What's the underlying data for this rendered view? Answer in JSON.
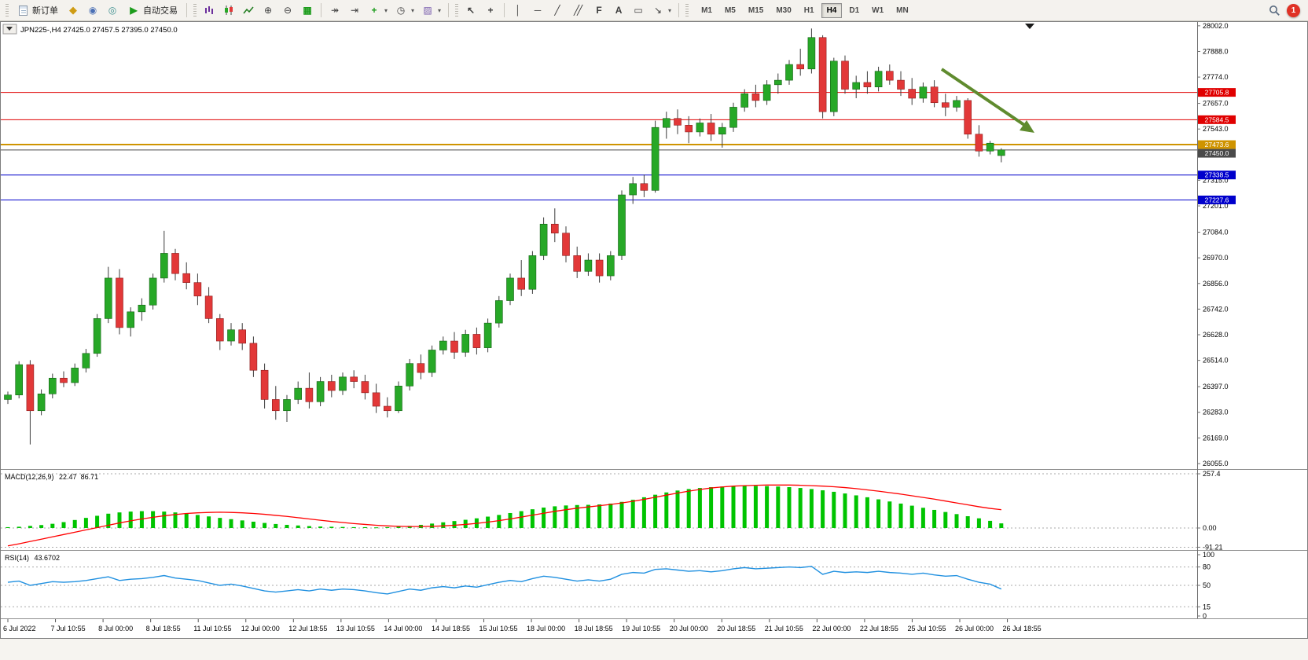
{
  "toolbar": {
    "new_order_label": "新订单",
    "autotrade_label": "自动交易",
    "timeframes": [
      "M1",
      "M5",
      "M15",
      "M30",
      "H1",
      "H4",
      "D1",
      "W1",
      "MN"
    ],
    "active_timeframe": "H4",
    "badge_count": "1"
  },
  "icons": {
    "metaeditor": "◆",
    "community": "◉",
    "market": "◎",
    "autotrade_play": "▶",
    "zoom_in": "⊕",
    "zoom_out": "⊖",
    "tile_windows": "▦",
    "auto_scroll": "↠",
    "chart_shift": "⇥",
    "indicators_add": "+",
    "periods_clock": "◷",
    "templates": "▨",
    "cursor": "↖",
    "crosshair": "+",
    "vline": "│",
    "hline": "─",
    "trendline": "╱",
    "channel": "╱╱",
    "fibonacci": "F",
    "text_tool": "A",
    "label_tool": "▭",
    "arrows_tool": "↘",
    "caret": "▾"
  },
  "chart_data": {
    "type": "candlestick",
    "symbol_label": "JPN225-,H4",
    "ohlc_display": "27425.0 27457.5 27395.0 27450.0",
    "colors": {
      "up": "#27a827",
      "down": "#e23838",
      "wick": "#3c3c3c",
      "macd_bar": "#00c400",
      "macd_signal": "#ff0000",
      "rsi_line": "#2090e0"
    },
    "candles": [
      [
        26340,
        26375,
        26320,
        26360
      ],
      [
        26360,
        26510,
        26345,
        26495
      ],
      [
        26495,
        26515,
        26140,
        26290
      ],
      [
        26290,
        26385,
        26270,
        26365
      ],
      [
        26365,
        26455,
        26345,
        26435
      ],
      [
        26435,
        26465,
        26395,
        26415
      ],
      [
        26415,
        26500,
        26400,
        26480
      ],
      [
        26480,
        26565,
        26460,
        26545
      ],
      [
        26545,
        26720,
        26530,
        26700
      ],
      [
        26700,
        26930,
        26680,
        26880
      ],
      [
        26880,
        26920,
        26630,
        26660
      ],
      [
        26660,
        26750,
        26620,
        26730
      ],
      [
        26730,
        26790,
        26690,
        26760
      ],
      [
        26760,
        26900,
        26740,
        26880
      ],
      [
        26880,
        27090,
        26860,
        26990
      ],
      [
        26990,
        27010,
        26870,
        26900
      ],
      [
        26900,
        26950,
        26830,
        26860
      ],
      [
        26860,
        26900,
        26760,
        26800
      ],
      [
        26800,
        26840,
        26680,
        26700
      ],
      [
        26700,
        26720,
        26560,
        26600
      ],
      [
        26600,
        26680,
        26580,
        26650
      ],
      [
        26650,
        26680,
        26560,
        26590
      ],
      [
        26590,
        26620,
        26440,
        26470
      ],
      [
        26470,
        26500,
        26300,
        26340
      ],
      [
        26340,
        26400,
        26250,
        26290
      ],
      [
        26290,
        26360,
        26240,
        26340
      ],
      [
        26340,
        26420,
        26320,
        26390
      ],
      [
        26390,
        26460,
        26300,
        26330
      ],
      [
        26330,
        26440,
        26310,
        26420
      ],
      [
        26420,
        26450,
        26350,
        26380
      ],
      [
        26380,
        26460,
        26360,
        26440
      ],
      [
        26440,
        26470,
        26390,
        26420
      ],
      [
        26420,
        26450,
        26340,
        26370
      ],
      [
        26370,
        26410,
        26280,
        26310
      ],
      [
        26310,
        26350,
        26260,
        26290
      ],
      [
        26290,
        26420,
        26280,
        26400
      ],
      [
        26400,
        26520,
        26380,
        26500
      ],
      [
        26500,
        26540,
        26430,
        26460
      ],
      [
        26460,
        26580,
        26440,
        26560
      ],
      [
        26560,
        26620,
        26540,
        26600
      ],
      [
        26600,
        26640,
        26520,
        26550
      ],
      [
        26550,
        26650,
        26530,
        26630
      ],
      [
        26630,
        26660,
        26540,
        26570
      ],
      [
        26570,
        26700,
        26550,
        26680
      ],
      [
        26680,
        26800,
        26660,
        26780
      ],
      [
        26780,
        26900,
        26760,
        26880
      ],
      [
        26880,
        26960,
        26800,
        26830
      ],
      [
        26830,
        27000,
        26810,
        26980
      ],
      [
        26980,
        27150,
        26960,
        27120
      ],
      [
        27120,
        27190,
        27040,
        27080
      ],
      [
        27080,
        27110,
        26950,
        26980
      ],
      [
        26980,
        27020,
        26880,
        26910
      ],
      [
        26910,
        26990,
        26890,
        26960
      ],
      [
        26960,
        26990,
        26860,
        26890
      ],
      [
        26890,
        27000,
        26870,
        26980
      ],
      [
        26980,
        27270,
        26960,
        27250
      ],
      [
        27250,
        27330,
        27210,
        27300
      ],
      [
        27300,
        27340,
        27240,
        27270
      ],
      [
        27270,
        27580,
        27260,
        27550
      ],
      [
        27550,
        27620,
        27500,
        27590
      ],
      [
        27590,
        27630,
        27520,
        27560
      ],
      [
        27560,
        27600,
        27480,
        27530
      ],
      [
        27530,
        27590,
        27510,
        27570
      ],
      [
        27570,
        27610,
        27490,
        27520
      ],
      [
        27520,
        27570,
        27460,
        27550
      ],
      [
        27550,
        27660,
        27530,
        27640
      ],
      [
        27640,
        27720,
        27620,
        27700
      ],
      [
        27700,
        27740,
        27640,
        27670
      ],
      [
        27670,
        27760,
        27650,
        27740
      ],
      [
        27740,
        27790,
        27700,
        27760
      ],
      [
        27760,
        27850,
        27740,
        27830
      ],
      [
        27830,
        27900,
        27780,
        27810
      ],
      [
        27810,
        27990,
        27790,
        27950
      ],
      [
        27950,
        27960,
        27590,
        27620
      ],
      [
        27620,
        27860,
        27600,
        27845
      ],
      [
        27845,
        27870,
        27700,
        27720
      ],
      [
        27720,
        27780,
        27680,
        27750
      ],
      [
        27750,
        27800,
        27700,
        27730
      ],
      [
        27730,
        27820,
        27710,
        27800
      ],
      [
        27800,
        27830,
        27740,
        27760
      ],
      [
        27760,
        27800,
        27690,
        27720
      ],
      [
        27720,
        27770,
        27650,
        27680
      ],
      [
        27680,
        27750,
        27660,
        27730
      ],
      [
        27730,
        27760,
        27640,
        27660
      ],
      [
        27660,
        27700,
        27600,
        27640
      ],
      [
        27640,
        27690,
        27620,
        27670
      ],
      [
        27670,
        27680,
        27500,
        27520
      ],
      [
        27520,
        27560,
        27420,
        27445
      ],
      [
        27445,
        27490,
        27430,
        27480
      ],
      [
        27425,
        27457.5,
        27395,
        27450
      ]
    ],
    "price_ticks": [
      {
        "label": "28002.0",
        "value": 28002
      },
      {
        "label": "27888.0",
        "value": 27888
      },
      {
        "label": "27774.0",
        "value": 27774
      },
      {
        "label": "27657.0",
        "value": 27657
      },
      {
        "label": "27543.0",
        "value": 27543
      },
      {
        "label": "27429.0",
        "value": 27429
      },
      {
        "label": "27315.0",
        "value": 27315
      },
      {
        "label": "27201.0",
        "value": 27201
      },
      {
        "label": "27084.0",
        "value": 27084
      },
      {
        "label": "26970.0",
        "value": 26970
      },
      {
        "label": "26856.0",
        "value": 26856
      },
      {
        "label": "26742.0",
        "value": 26742
      },
      {
        "label": "26628.0",
        "value": 26628
      },
      {
        "label": "26514.0",
        "value": 26514
      },
      {
        "label": "26397.0",
        "value": 26397
      },
      {
        "label": "26283.0",
        "value": 26283
      },
      {
        "label": "26169.0",
        "value": 26169
      },
      {
        "label": "26055.0",
        "value": 26055
      }
    ],
    "hlines": [
      {
        "value": 27705.8,
        "label": "27705.8",
        "color": "#e00000",
        "width": 1
      },
      {
        "value": 27584.5,
        "label": "27584.5",
        "color": "#e00000",
        "width": 1
      },
      {
        "value": 27473.6,
        "label": "27473.6",
        "color": "#cf9400",
        "width": 2
      },
      {
        "value": 27338.5,
        "label": "27338.5",
        "color": "#0000cc",
        "width": 1
      },
      {
        "value": 27227.6,
        "label": "27227.6",
        "color": "#0000cc",
        "width": 1
      }
    ],
    "current_price": {
      "value": 27450.0,
      "label": "27450.0",
      "color": "#4a4a4a"
    },
    "trend_arrow": {
      "color": "#5f8b2e"
    },
    "time_labels": [
      "6 Jul 2022",
      "7 Jul 10:55",
      "8 Jul 00:00",
      "8 Jul 18:55",
      "11 Jul 10:55",
      "12 Jul 00:00",
      "12 Jul 18:55",
      "13 Jul 10:55",
      "14 Jul 00:00",
      "14 Jul 18:55",
      "15 Jul 10:55",
      "18 Jul 00:00",
      "18 Jul 18:55",
      "19 Jul 10:55",
      "20 Jul 00:00",
      "20 Jul 18:55",
      "21 Jul 10:55",
      "22 Jul 00:00",
      "22 Jul 18:55",
      "25 Jul 10:55",
      "26 Jul 00:00",
      "26 Jul 18:55"
    ],
    "macd": {
      "name": "MACD(12,26,9)",
      "value_main": "22.47",
      "value_signal": "86.71",
      "ticks": [
        {
          "label": "257.4",
          "value": 257.4
        },
        {
          "label": "0.00",
          "value": 0
        },
        {
          "label": "-91.21",
          "value": -91.21
        }
      ],
      "bars": [
        4,
        6,
        10,
        14,
        20,
        28,
        38,
        48,
        58,
        68,
        74,
        78,
        80,
        80,
        78,
        74,
        68,
        62,
        55,
        48,
        42,
        36,
        30,
        24,
        19,
        15,
        12,
        9,
        7,
        6,
        5,
        4,
        4,
        3,
        4,
        6,
        10,
        15,
        21,
        27,
        33,
        39,
        46,
        54,
        62,
        71,
        80,
        89,
        97,
        103,
        107,
        109,
        110,
        112,
        116,
        124,
        134,
        146,
        158,
        169,
        178,
        185,
        190,
        194,
        197,
        199,
        200,
        200,
        199,
        197,
        194,
        190,
        185,
        179,
        172,
        164,
        155,
        146,
        136,
        126,
        116,
        106,
        96,
        86,
        76,
        66,
        56,
        46,
        34,
        22
      ],
      "signal": [
        -85,
        -75,
        -64,
        -53,
        -42,
        -31,
        -20,
        -9,
        2,
        13,
        24,
        34,
        43,
        51,
        58,
        64,
        69,
        72,
        74,
        75,
        74,
        72,
        69,
        65,
        60,
        55,
        49,
        43,
        37,
        31,
        26,
        21,
        17,
        13,
        10,
        8,
        7,
        7,
        8,
        10,
        13,
        17,
        22,
        28,
        35,
        43,
        52,
        61,
        70,
        79,
        87,
        94,
        100,
        106,
        112,
        119,
        127,
        136,
        146,
        156,
        166,
        175,
        183,
        190,
        195,
        199,
        201,
        203,
        204,
        204,
        204,
        203,
        201,
        199,
        196,
        192,
        187,
        181,
        175,
        168,
        161,
        153,
        145,
        137,
        128,
        119,
        110,
        101,
        93,
        87
      ]
    },
    "rsi": {
      "name": "RSI(14)",
      "value": "43.6702",
      "ticks": [
        {
          "label": "100",
          "value": 100
        },
        {
          "label": "80",
          "value": 80
        },
        {
          "label": "50",
          "value": 50
        },
        {
          "label": "15",
          "value": 15
        },
        {
          "label": "0",
          "value": 0
        }
      ],
      "levels": [
        80,
        50,
        15
      ],
      "values": [
        55,
        57,
        50,
        53,
        56,
        55,
        56,
        58,
        61,
        64,
        58,
        60,
        61,
        63,
        66,
        62,
        60,
        58,
        54,
        50,
        52,
        49,
        45,
        41,
        39,
        41,
        43,
        41,
        44,
        42,
        44,
        43,
        41,
        38,
        36,
        40,
        44,
        42,
        46,
        48,
        46,
        49,
        47,
        51,
        55,
        58,
        56,
        61,
        65,
        63,
        60,
        57,
        59,
        57,
        60,
        68,
        71,
        70,
        76,
        77,
        75,
        73,
        74,
        72,
        74,
        77,
        79,
        77,
        78,
        79,
        80,
        79,
        81,
        68,
        73,
        71,
        72,
        71,
        73,
        71,
        70,
        68,
        70,
        67,
        65,
        66,
        60,
        55,
        52,
        44
      ]
    }
  }
}
